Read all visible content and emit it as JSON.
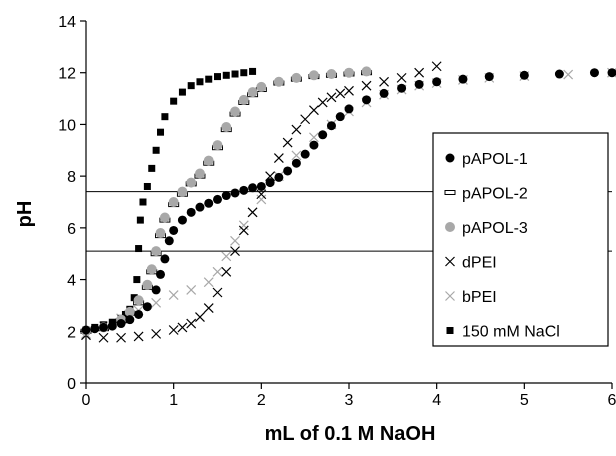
{
  "chart_data": {
    "type": "scatter",
    "title": "",
    "xlabel": "mL of 0.1 M NaOH",
    "ylabel": "pH",
    "xlim": [
      0,
      6
    ],
    "ylim": [
      0,
      14
    ],
    "xticks": [
      0,
      1,
      2,
      3,
      4,
      5,
      6
    ],
    "yticks": [
      0,
      2,
      4,
      6,
      8,
      10,
      12,
      14
    ],
    "grid": false,
    "legend_position": "right",
    "reference_lines": [
      7.4,
      5.1
    ],
    "series": [
      {
        "name": "pAPOL-1",
        "marker": "filled-circle",
        "color": "#000000",
        "points": [
          [
            0,
            2.05
          ],
          [
            0.1,
            2.1
          ],
          [
            0.2,
            2.15
          ],
          [
            0.3,
            2.2
          ],
          [
            0.4,
            2.3
          ],
          [
            0.5,
            2.45
          ],
          [
            0.6,
            2.65
          ],
          [
            0.7,
            2.95
          ],
          [
            0.8,
            3.6
          ],
          [
            0.85,
            4.2
          ],
          [
            0.9,
            4.8
          ],
          [
            0.95,
            5.5
          ],
          [
            1.0,
            5.9
          ],
          [
            1.1,
            6.3
          ],
          [
            1.2,
            6.6
          ],
          [
            1.3,
            6.8
          ],
          [
            1.4,
            6.95
          ],
          [
            1.5,
            7.1
          ],
          [
            1.6,
            7.25
          ],
          [
            1.7,
            7.35
          ],
          [
            1.8,
            7.45
          ],
          [
            1.9,
            7.55
          ],
          [
            2.0,
            7.6
          ],
          [
            2.1,
            7.75
          ],
          [
            2.2,
            7.95
          ],
          [
            2.3,
            8.2
          ],
          [
            2.4,
            8.5
          ],
          [
            2.5,
            8.85
          ],
          [
            2.6,
            9.2
          ],
          [
            2.7,
            9.6
          ],
          [
            2.8,
            9.95
          ],
          [
            2.9,
            10.3
          ],
          [
            3.0,
            10.6
          ],
          [
            3.2,
            10.95
          ],
          [
            3.4,
            11.2
          ],
          [
            3.6,
            11.4
          ],
          [
            3.8,
            11.55
          ],
          [
            4.0,
            11.65
          ],
          [
            4.3,
            11.75
          ],
          [
            4.6,
            11.85
          ],
          [
            5.0,
            11.9
          ],
          [
            5.4,
            11.95
          ],
          [
            5.8,
            12.0
          ],
          [
            6.0,
            12.0
          ]
        ]
      },
      {
        "name": "pAPOL-2",
        "marker": "open-dash",
        "color": "#000000",
        "points": [
          [
            0,
            2.0
          ],
          [
            0.2,
            2.1
          ],
          [
            0.4,
            2.4
          ],
          [
            0.5,
            2.7
          ],
          [
            0.6,
            3.1
          ],
          [
            0.7,
            3.7
          ],
          [
            0.75,
            4.3
          ],
          [
            0.8,
            5.0
          ],
          [
            0.85,
            5.7
          ],
          [
            0.9,
            6.3
          ],
          [
            1.0,
            6.9
          ],
          [
            1.1,
            7.3
          ],
          [
            1.2,
            7.7
          ],
          [
            1.3,
            8.0
          ],
          [
            1.4,
            8.5
          ],
          [
            1.5,
            9.1
          ],
          [
            1.6,
            9.8
          ],
          [
            1.7,
            10.4
          ],
          [
            1.8,
            10.85
          ],
          [
            1.9,
            11.15
          ],
          [
            2.0,
            11.35
          ],
          [
            2.2,
            11.6
          ],
          [
            2.4,
            11.75
          ],
          [
            2.6,
            11.85
          ],
          [
            2.8,
            11.9
          ],
          [
            3.0,
            11.95
          ],
          [
            3.2,
            12.0
          ]
        ]
      },
      {
        "name": "pAPOL-3",
        "marker": "gray-circle",
        "color": "#a8a8a8",
        "points": [
          [
            0,
            2.0
          ],
          [
            0.2,
            2.15
          ],
          [
            0.4,
            2.45
          ],
          [
            0.5,
            2.75
          ],
          [
            0.6,
            3.2
          ],
          [
            0.7,
            3.8
          ],
          [
            0.75,
            4.4
          ],
          [
            0.8,
            5.1
          ],
          [
            0.85,
            5.8
          ],
          [
            0.9,
            6.4
          ],
          [
            1.0,
            7.0
          ],
          [
            1.1,
            7.4
          ],
          [
            1.2,
            7.75
          ],
          [
            1.3,
            8.1
          ],
          [
            1.4,
            8.6
          ],
          [
            1.5,
            9.2
          ],
          [
            1.6,
            9.9
          ],
          [
            1.7,
            10.5
          ],
          [
            1.8,
            10.95
          ],
          [
            1.9,
            11.25
          ],
          [
            2.0,
            11.45
          ],
          [
            2.2,
            11.65
          ],
          [
            2.4,
            11.8
          ],
          [
            2.6,
            11.9
          ],
          [
            2.8,
            11.95
          ],
          [
            3.0,
            12.0
          ],
          [
            3.2,
            12.05
          ]
        ]
      },
      {
        "name": "dPEI",
        "marker": "x",
        "color": "#000000",
        "points": [
          [
            0,
            1.85
          ],
          [
            0.2,
            1.75
          ],
          [
            0.4,
            1.75
          ],
          [
            0.6,
            1.8
          ],
          [
            0.8,
            1.9
          ],
          [
            1.0,
            2.05
          ],
          [
            1.1,
            2.15
          ],
          [
            1.2,
            2.3
          ],
          [
            1.3,
            2.55
          ],
          [
            1.4,
            2.9
          ],
          [
            1.5,
            3.5
          ],
          [
            1.6,
            4.3
          ],
          [
            1.7,
            5.1
          ],
          [
            1.8,
            5.9
          ],
          [
            1.9,
            6.6
          ],
          [
            2.0,
            7.3
          ],
          [
            2.1,
            8.0
          ],
          [
            2.2,
            8.7
          ],
          [
            2.3,
            9.3
          ],
          [
            2.4,
            9.8
          ],
          [
            2.5,
            10.2
          ],
          [
            2.6,
            10.55
          ],
          [
            2.7,
            10.85
          ],
          [
            2.8,
            11.05
          ],
          [
            2.9,
            11.2
          ],
          [
            3.0,
            11.3
          ],
          [
            3.2,
            11.5
          ],
          [
            3.4,
            11.65
          ],
          [
            3.6,
            11.8
          ],
          [
            3.8,
            12.0
          ],
          [
            4.0,
            12.25
          ]
        ]
      },
      {
        "name": "bPEI",
        "marker": "gray-x",
        "color": "#a8a8a8",
        "points": [
          [
            0,
            1.9
          ],
          [
            0.2,
            2.2
          ],
          [
            0.4,
            2.5
          ],
          [
            0.6,
            2.8
          ],
          [
            0.8,
            3.1
          ],
          [
            1.0,
            3.4
          ],
          [
            1.2,
            3.6
          ],
          [
            1.4,
            3.9
          ],
          [
            1.5,
            4.3
          ],
          [
            1.6,
            4.9
          ],
          [
            1.7,
            5.5
          ],
          [
            1.8,
            6.1
          ],
          [
            1.9,
            6.6
          ],
          [
            2.0,
            7.1
          ],
          [
            2.2,
            8.0
          ],
          [
            2.4,
            8.8
          ],
          [
            2.6,
            9.5
          ],
          [
            2.8,
            10.0
          ],
          [
            3.0,
            10.5
          ],
          [
            3.2,
            10.85
          ],
          [
            3.4,
            11.15
          ],
          [
            3.6,
            11.35
          ],
          [
            3.8,
            11.5
          ],
          [
            4.0,
            11.6
          ],
          [
            4.3,
            11.72
          ],
          [
            4.6,
            11.8
          ],
          [
            5.0,
            11.87
          ],
          [
            5.5,
            11.93
          ],
          [
            6.0,
            12.0
          ]
        ]
      },
      {
        "name": "150 mM NaCl",
        "marker": "filled-square",
        "color": "#000000",
        "points": [
          [
            0,
            2.05
          ],
          [
            0.1,
            2.15
          ],
          [
            0.2,
            2.25
          ],
          [
            0.3,
            2.35
          ],
          [
            0.4,
            2.5
          ],
          [
            0.45,
            2.65
          ],
          [
            0.5,
            2.85
          ],
          [
            0.55,
            3.3
          ],
          [
            0.58,
            4.0
          ],
          [
            0.6,
            5.2
          ],
          [
            0.62,
            6.3
          ],
          [
            0.65,
            7.0
          ],
          [
            0.7,
            7.6
          ],
          [
            0.75,
            8.3
          ],
          [
            0.8,
            9.0
          ],
          [
            0.85,
            9.7
          ],
          [
            0.9,
            10.3
          ],
          [
            1.0,
            10.9
          ],
          [
            1.1,
            11.25
          ],
          [
            1.2,
            11.5
          ],
          [
            1.3,
            11.65
          ],
          [
            1.4,
            11.75
          ],
          [
            1.5,
            11.85
          ],
          [
            1.6,
            11.9
          ],
          [
            1.7,
            11.95
          ],
          [
            1.8,
            12.0
          ],
          [
            1.9,
            12.05
          ]
        ]
      }
    ]
  }
}
